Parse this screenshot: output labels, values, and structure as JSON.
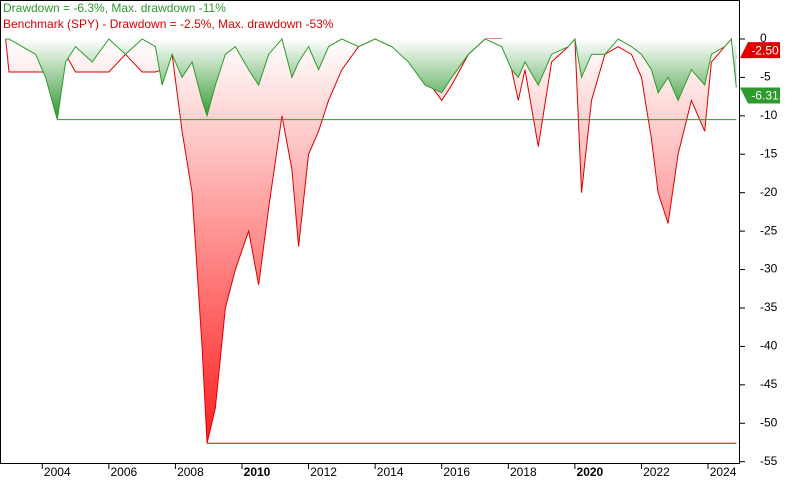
{
  "chart_data": {
    "type": "area",
    "x": [
      2002.9,
      2003.0,
      2003.4,
      2003.8,
      2004.1,
      2004.45,
      2004.7,
      2005.0,
      2005.5,
      2006.0,
      2006.5,
      2007.0,
      2007.4,
      2007.6,
      2007.9,
      2008.2,
      2008.5,
      2008.8,
      2008.95,
      2009.2,
      2009.5,
      2009.8,
      2010.2,
      2010.5,
      2010.8,
      2011.2,
      2011.5,
      2011.7,
      2012.0,
      2012.3,
      2012.6,
      2013.0,
      2013.5,
      2014.0,
      2014.5,
      2015.0,
      2015.5,
      2016.0,
      2016.3,
      2016.8,
      2017.3,
      2017.8,
      2018.1,
      2018.3,
      2018.5,
      2018.9,
      2019.3,
      2019.8,
      2020.0,
      2020.2,
      2020.5,
      2020.9,
      2021.3,
      2021.7,
      2022.0,
      2022.3,
      2022.5,
      2022.8,
      2023.1,
      2023.5,
      2023.9,
      2024.1,
      2024.5,
      2024.7,
      2024.85
    ],
    "series": [
      {
        "name": "Benchmark (SPY) - Drawdown = -2.5%, Max. drawdown -53%",
        "color": "#e00000",
        "max_drawdown": -52.6,
        "values": [
          0,
          -4.3,
          -4.3,
          -4.3,
          -4.3,
          -4.3,
          -2,
          -4.3,
          -4.3,
          -4.3,
          -2,
          -4.3,
          -4.3,
          -4,
          -2,
          -12,
          -20,
          -40,
          -52.6,
          -48,
          -35,
          -30,
          -25,
          -32,
          -22,
          -10,
          -17,
          -27,
          -15,
          -12,
          -8,
          -4,
          -1,
          0,
          -1,
          -2,
          -5,
          -8,
          -6,
          -2,
          0,
          0,
          -4,
          -8,
          -4,
          -14,
          -3,
          -1,
          0,
          -20,
          -8,
          -2,
          -1,
          -2,
          -5,
          -13,
          -20,
          -24,
          -15,
          -8,
          -12,
          -3,
          -1,
          0,
          -2.5
        ]
      },
      {
        "name": "Drawdown = -6.3%, Max. drawdown -11%",
        "color": "#2e9a2e",
        "max_drawdown": -10.5,
        "values": [
          0,
          0,
          -1,
          -2,
          -5,
          -10.5,
          -3,
          -1,
          -3,
          0,
          -2,
          0,
          -1,
          -6,
          -2,
          -5,
          -3,
          -8,
          -10,
          -6,
          -2,
          -1,
          -4,
          -6,
          -2,
          0,
          -5,
          -3,
          -1,
          -4,
          -1,
          0,
          -1,
          0,
          -1,
          -3,
          -6,
          -7,
          -5,
          -2,
          0,
          -1,
          -4,
          -5,
          -3,
          -6,
          -2,
          -1,
          0,
          -5,
          -2,
          -2,
          0,
          -1,
          -2,
          -4,
          -7,
          -5,
          -8,
          -4,
          -6,
          -2,
          -1,
          0,
          -6.31
        ]
      }
    ],
    "annotations": [
      {
        "text": "-2.50",
        "value": -2.5,
        "color": "#e00000"
      },
      {
        "text": "-6.31",
        "value": -6.31,
        "color": "#2e9a2e"
      }
    ],
    "xlim": [
      2002.73,
      2024.96
    ],
    "xticks": [
      2004,
      2006,
      2008,
      2010,
      2012,
      2014,
      2016,
      2018,
      2020,
      2022,
      2024
    ],
    "ylim": [
      -55.3,
      5.07
    ],
    "yticks": [
      0,
      -5,
      -10,
      -15,
      -20,
      -25,
      -30,
      -35,
      -40,
      -45,
      -50,
      -55
    ]
  }
}
